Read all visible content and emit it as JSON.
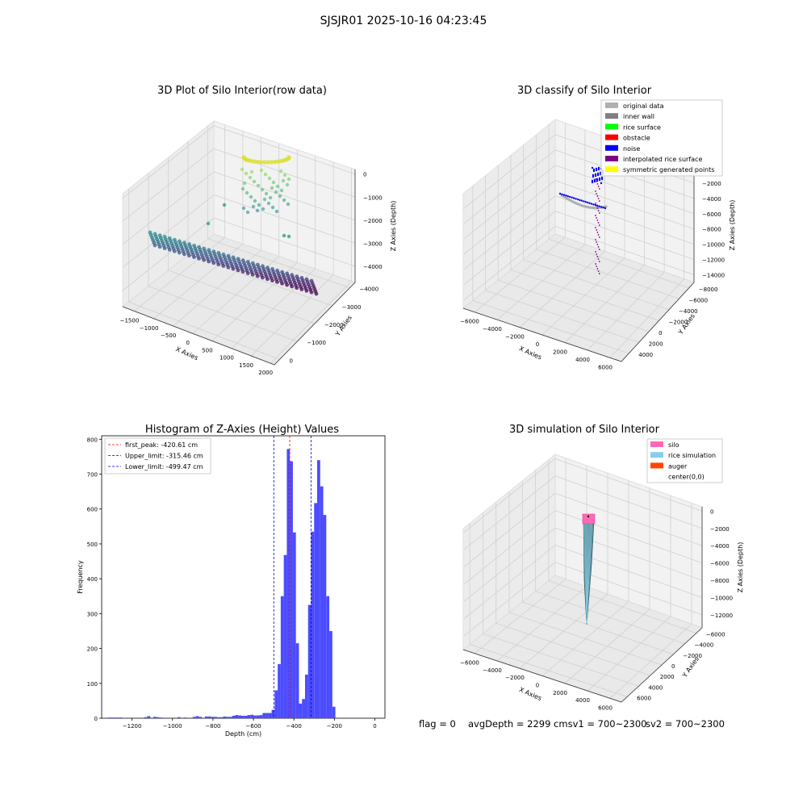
{
  "figure": {
    "title": "SJSJR01 2025-10-16 04:23:45"
  },
  "status": {
    "flag": "flag = 0",
    "avg": "avgDepth = 2299 cmsv1 = 700~2300",
    "sv2": "sv2 = 700~2300"
  },
  "chart_data": [
    {
      "type": "scatter3d",
      "title": "3D Plot of Silo Interior(row data)",
      "xlabel": "X Axies",
      "ylabel": "Y Axies",
      "zlabel": "Z Axies (Depth)",
      "x_ticks": [
        -1500,
        -1000,
        -500,
        0,
        500,
        1000,
        1500,
        2000
      ],
      "y_ticks": [
        0,
        -1000,
        -2000,
        -3000,
        -4000
      ],
      "z_ticks": [
        0,
        -1000,
        -2000,
        -3000,
        -4000
      ],
      "xlim": [
        -1800,
        2100
      ],
      "ylim": [
        -4300,
        300
      ],
      "zlim": [
        -4700,
        200
      ],
      "colormap": "viridis"
    },
    {
      "type": "scatter3d",
      "title": "3D classify of Silo Interior",
      "xlabel": "X Axies",
      "ylabel": "Y Axies",
      "zlabel": "Z Axies (Depth)",
      "x_ticks": [
        -6000,
        -4000,
        -2000,
        0,
        2000,
        4000,
        6000
      ],
      "y_ticks": [
        4000,
        2000,
        0,
        -2000,
        -4000,
        -6000,
        -8000
      ],
      "z_ticks": [
        -2000,
        -4000,
        -6000,
        -8000,
        -10000,
        -12000,
        -14000
      ],
      "xlim": [
        -7000,
        7000
      ],
      "ylim": [
        -9000,
        5500
      ],
      "zlim": [
        -15000,
        0
      ],
      "legend_position": "top-right",
      "legend": [
        {
          "label": "original data",
          "color": "#b0b0b0"
        },
        {
          "label": "inner wall",
          "color": "#808080"
        },
        {
          "label": "rice surface",
          "color": "#00ff00"
        },
        {
          "label": "obstacle",
          "color": "#ff0000"
        },
        {
          "label": "noise",
          "color": "#0000ff"
        },
        {
          "label": "interpolated rice surface",
          "color": "#800080"
        },
        {
          "label": "symmetric generated points",
          "color": "#ffff00"
        }
      ]
    },
    {
      "type": "histogram",
      "title": "Histogram of Z-Axies (Height) Values",
      "xlabel": "Depth (cm)",
      "ylabel": "Frequency",
      "xlim": [
        -1350,
        50
      ],
      "ylim": [
        0,
        810
      ],
      "x_ticks": [
        -1200,
        -1000,
        -800,
        -600,
        -400,
        -200,
        0
      ],
      "y_ticks": [
        0,
        100,
        200,
        300,
        400,
        500,
        600,
        700,
        800
      ],
      "bar_color": "#4b4bff",
      "bin_width": 15,
      "bins": [
        {
          "x": -1320,
          "count": 2
        },
        {
          "x": -1305,
          "count": 2
        },
        {
          "x": -1290,
          "count": 2
        },
        {
          "x": -1275,
          "count": 2
        },
        {
          "x": -1260,
          "count": 2
        },
        {
          "x": -1245,
          "count": 1
        },
        {
          "x": -1140,
          "count": 3
        },
        {
          "x": -1125,
          "count": 6
        },
        {
          "x": -1095,
          "count": 4
        },
        {
          "x": -1080,
          "count": 3
        },
        {
          "x": -1065,
          "count": 2
        },
        {
          "x": -975,
          "count": 3
        },
        {
          "x": -945,
          "count": 2
        },
        {
          "x": -900,
          "count": 4
        },
        {
          "x": -885,
          "count": 6
        },
        {
          "x": -870,
          "count": 4
        },
        {
          "x": -840,
          "count": 5
        },
        {
          "x": -825,
          "count": 5
        },
        {
          "x": -810,
          "count": 4
        },
        {
          "x": -795,
          "count": 4
        },
        {
          "x": -780,
          "count": 3
        },
        {
          "x": -765,
          "count": 3
        },
        {
          "x": -750,
          "count": 5
        },
        {
          "x": -735,
          "count": 4
        },
        {
          "x": -720,
          "count": 4
        },
        {
          "x": -705,
          "count": 7
        },
        {
          "x": -690,
          "count": 9
        },
        {
          "x": -675,
          "count": 8
        },
        {
          "x": -660,
          "count": 7
        },
        {
          "x": -645,
          "count": 7
        },
        {
          "x": -630,
          "count": 9
        },
        {
          "x": -615,
          "count": 10
        },
        {
          "x": -600,
          "count": 8
        },
        {
          "x": -585,
          "count": 8
        },
        {
          "x": -570,
          "count": 9
        },
        {
          "x": -555,
          "count": 15
        },
        {
          "x": -540,
          "count": 15
        },
        {
          "x": -525,
          "count": 15
        },
        {
          "x": -510,
          "count": 24
        },
        {
          "x": -495,
          "count": 80
        },
        {
          "x": -480,
          "count": 155
        },
        {
          "x": -465,
          "count": 350
        },
        {
          "x": -450,
          "count": 468
        },
        {
          "x": -435,
          "count": 772
        },
        {
          "x": -420,
          "count": 737
        },
        {
          "x": -405,
          "count": 533
        },
        {
          "x": -390,
          "count": 215
        },
        {
          "x": -375,
          "count": 42
        },
        {
          "x": -360,
          "count": 55
        },
        {
          "x": -345,
          "count": 125
        },
        {
          "x": -330,
          "count": 325
        },
        {
          "x": -315,
          "count": 535
        },
        {
          "x": -300,
          "count": 617
        },
        {
          "x": -285,
          "count": 740
        },
        {
          "x": -270,
          "count": 665
        },
        {
          "x": -255,
          "count": 583
        },
        {
          "x": -240,
          "count": 350
        },
        {
          "x": -225,
          "count": 250
        },
        {
          "x": -210,
          "count": 33
        }
      ],
      "vlines": [
        {
          "label": "first_peak: -420.61 cm",
          "x": -420.61,
          "color": "#ff0000"
        },
        {
          "label": "Upper_limit: -315.46 cm",
          "x": -315.46,
          "color": "#0000cc"
        },
        {
          "label": "Lower_limit: -499.47 cm",
          "x": -499.47,
          "color": "#0000cc"
        }
      ],
      "legend_position": "top-left"
    },
    {
      "type": "surface3d",
      "title": "3D simulation of Silo Interior",
      "xlabel": "X Axies",
      "ylabel": "Y Axies",
      "zlabel": "Z Axies (Depth)",
      "x_ticks": [
        -6000,
        -4000,
        -2000,
        0,
        2000,
        4000,
        6000
      ],
      "y_ticks": [
        6000,
        4000,
        2000,
        0,
        -2000,
        -4000,
        -6000
      ],
      "z_ticks": [
        0,
        -2000,
        -4000,
        -6000,
        -8000,
        -10000,
        -12000
      ],
      "xlim": [
        -7000,
        7000
      ],
      "ylim": [
        -7000,
        7000
      ],
      "zlim": [
        -13500,
        500
      ],
      "legend_position": "top-right",
      "legend": [
        {
          "label": "silo",
          "color": "#ff69b4"
        },
        {
          "label": "rice simulation",
          "color": "#87ceeb"
        },
        {
          "label": "auger",
          "color": "#ff4500"
        },
        {
          "label": "center(0,0)",
          "color": "#ffffff"
        }
      ]
    }
  ]
}
